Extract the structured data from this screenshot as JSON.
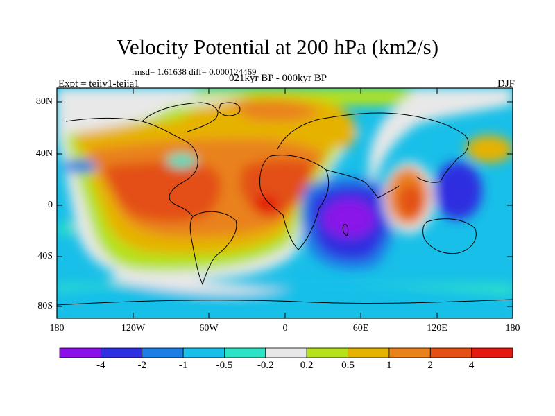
{
  "map": {
    "title": "Velocity Potential at 200 hPa (km2/s)",
    "stats": "rmsd= 1.61638 diff= 0.000124469",
    "experiment": "Expt = teiiv1-teiia1",
    "period": "021kyr BP - 000kyr BP",
    "season": "DJF",
    "lat_ticks": [
      "80N",
      "40N",
      "0",
      "40S",
      "80S"
    ],
    "lon_ticks": [
      "180",
      "120W",
      "60W",
      "0",
      "60E",
      "120E",
      "180"
    ]
  },
  "colorbar": {
    "levels": [
      "-4",
      "-2",
      "-1",
      "-0.5",
      "-0.2",
      "0.2",
      "0.5",
      "1",
      "2",
      "4"
    ],
    "colors": [
      "#8a12e8",
      "#2d2fe0",
      "#1d7fe6",
      "#18bfe8",
      "#2ee3c5",
      "#e8e8e8",
      "#b5e21a",
      "#e6b200",
      "#e9821b",
      "#e34f14",
      "#e21a10"
    ]
  }
}
